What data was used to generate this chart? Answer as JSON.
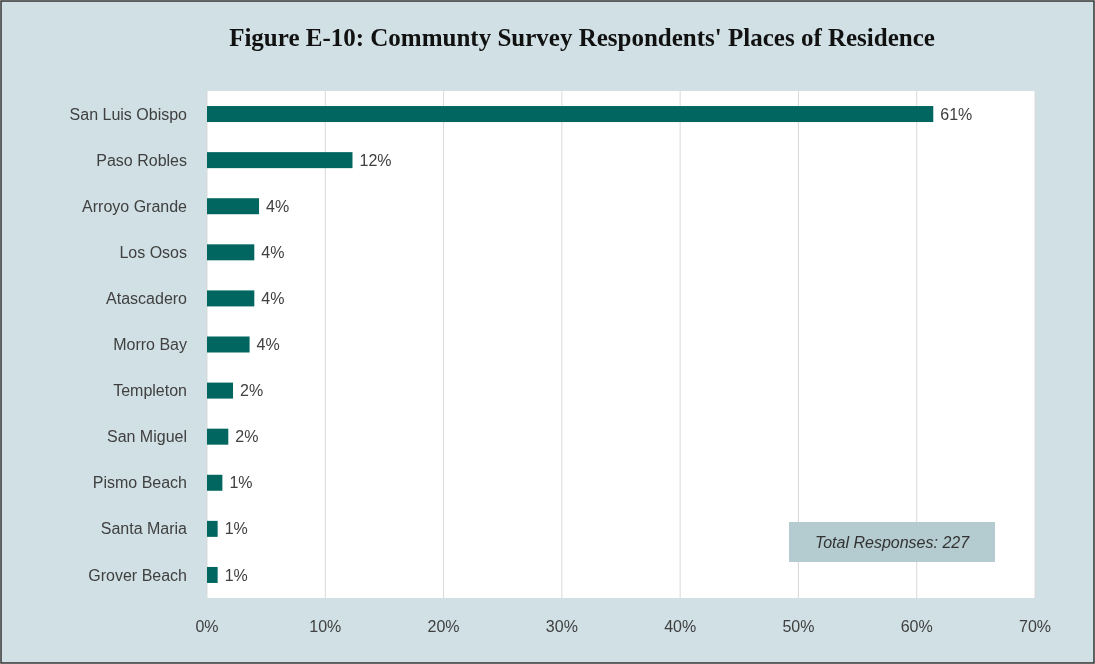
{
  "chart_data": {
    "type": "bar",
    "orientation": "horizontal",
    "title": "Figure E-10: Communty Survey Respondents' Places of Residence",
    "categories": [
      "San Luis Obispo",
      "Paso Robles",
      "Arroyo Grande",
      "Los Osos",
      "Atascadero",
      "Morro Bay",
      "Templeton",
      "San Miguel",
      "Pismo Beach",
      "Santa Maria",
      "Grover Beach"
    ],
    "values": [
      61.4,
      12.3,
      4.4,
      4.0,
      4.0,
      3.6,
      2.2,
      1.8,
      1.3,
      0.9,
      0.9
    ],
    "value_labels": [
      "61%",
      "12%",
      "4%",
      "4%",
      "4%",
      "4%",
      "2%",
      "2%",
      "1%",
      "1%",
      "1%"
    ],
    "color": "#00665f",
    "xlim": [
      0,
      70
    ],
    "xticks": [
      {
        "value": 0,
        "label": "0%"
      },
      {
        "value": 10,
        "label": "10%"
      },
      {
        "value": 20,
        "label": "20%"
      },
      {
        "value": 30,
        "label": "30%"
      },
      {
        "value": 40,
        "label": "40%"
      },
      {
        "value": 50,
        "label": "50%"
      },
      {
        "value": 60,
        "label": "60%"
      },
      {
        "value": 70,
        "label": "70%"
      }
    ],
    "grid": "x",
    "annotations": [
      "Total Responses: 227"
    ]
  }
}
